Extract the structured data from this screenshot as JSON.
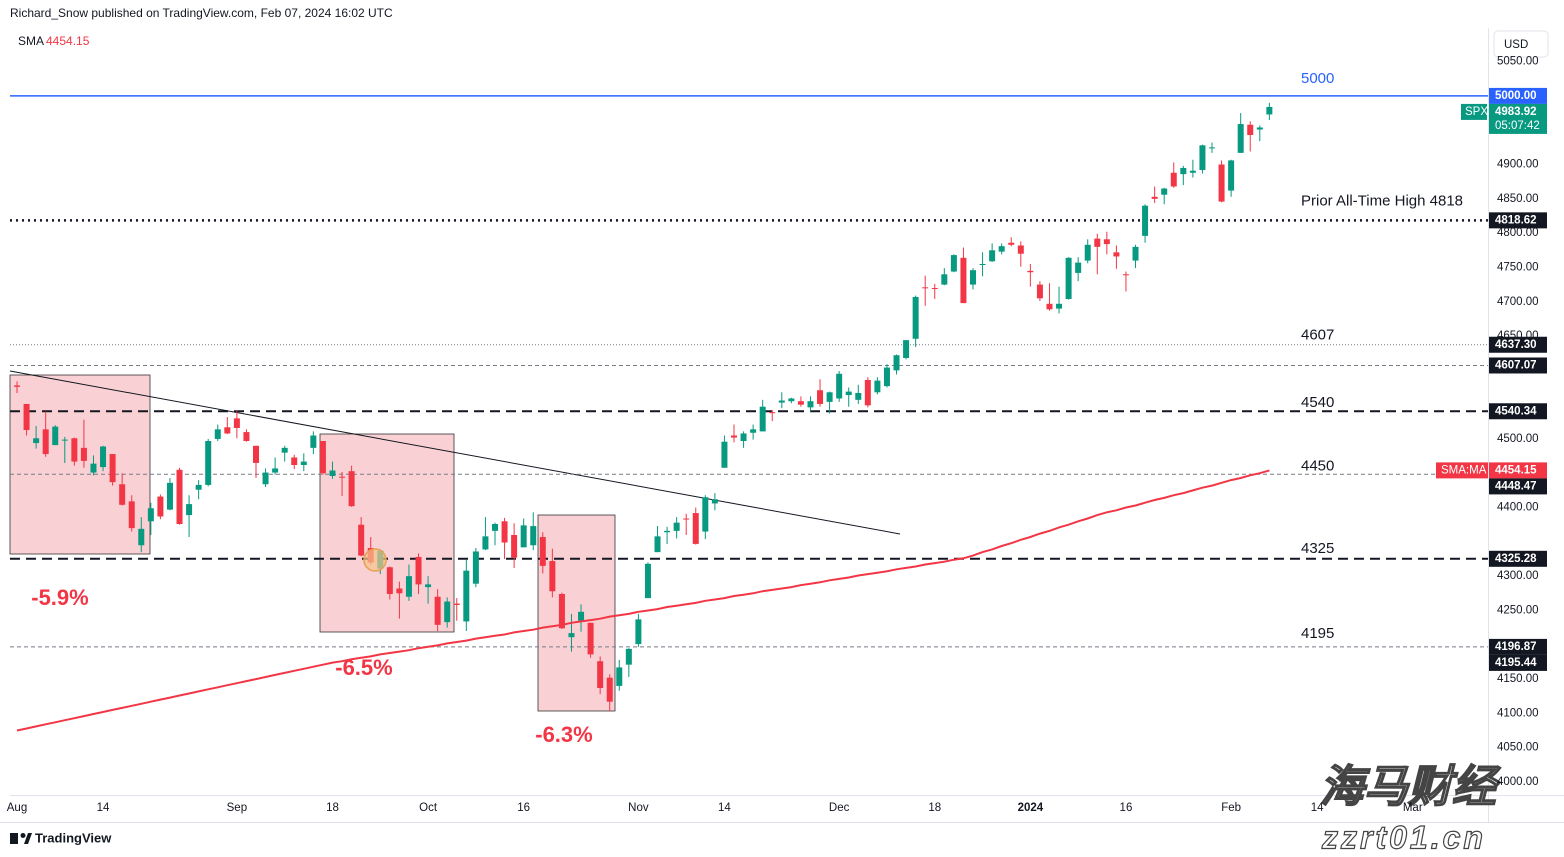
{
  "header": {
    "publisher": "Richard_Snow published on TradingView.com, Feb 07, 2024 16:02 UTC"
  },
  "chart_data": {
    "type": "candlestick",
    "symbol": "SPX",
    "currency": "USD",
    "categories": [
      "Aug",
      null,
      null,
      null,
      null,
      null,
      null,
      null,
      null,
      "14",
      null,
      null,
      null,
      null,
      null,
      null,
      null,
      null,
      null,
      null,
      null,
      null,
      null,
      "Sep",
      null,
      null,
      null,
      null,
      null,
      null,
      null,
      null,
      null,
      "18",
      null,
      null,
      null,
      null,
      null,
      null,
      null,
      null,
      null,
      "Oct",
      null,
      null,
      null,
      null,
      null,
      null,
      null,
      null,
      null,
      "16",
      null,
      null,
      null,
      null,
      null,
      null,
      null,
      null,
      null,
      null,
      null,
      "Nov",
      null,
      null,
      null,
      null,
      null,
      null,
      null,
      null,
      "14",
      null,
      null,
      null,
      null,
      null,
      null,
      null,
      null,
      null,
      null,
      null,
      "Dec",
      null,
      null,
      null,
      null,
      null,
      null,
      null,
      null,
      null,
      "18",
      null,
      null,
      null,
      null,
      null,
      null,
      null,
      null,
      null,
      "2024",
      null,
      null,
      null,
      null,
      null,
      null,
      null,
      null,
      null,
      "16",
      null,
      null,
      null,
      null,
      null,
      null,
      null,
      null,
      null,
      null,
      "Feb",
      null,
      null,
      null,
      null,
      null,
      null,
      null,
      null,
      "14",
      null,
      null,
      null,
      null,
      null,
      null,
      null,
      null,
      null,
      "Mar"
    ],
    "candles": [
      [
        4578,
        4584,
        4567,
        4576
      ],
      [
        4551,
        4551,
        4505,
        4513
      ],
      [
        4494,
        4519,
        4486,
        4501
      ],
      [
        4514,
        4540,
        4474,
        4478
      ],
      [
        4491,
        4520,
        4491,
        4518
      ],
      [
        4498,
        4503,
        4465,
        4499
      ],
      [
        4501,
        4502,
        4461,
        4467
      ],
      [
        4487,
        4528,
        4458,
        4468
      ],
      [
        4451,
        4476,
        4447,
        4464
      ],
      [
        4459,
        4490,
        4453,
        4489
      ],
      [
        4478,
        4478,
        4432,
        4437
      ],
      [
        4434,
        4450,
        4403,
        4404
      ],
      [
        4409,
        4418,
        4365,
        4370
      ],
      [
        4345,
        4386,
        4335,
        4369
      ],
      [
        4380,
        4407,
        4360,
        4399
      ],
      [
        4416,
        4419,
        4383,
        4387
      ],
      [
        4397,
        4443,
        4396,
        4436
      ],
      [
        4455,
        4458,
        4375,
        4376
      ],
      [
        4389,
        4418,
        4357,
        4405
      ],
      [
        4426,
        4440,
        4412,
        4433
      ],
      [
        4433,
        4500,
        4431,
        4497
      ],
      [
        4500,
        4521,
        4497,
        4514
      ],
      [
        4517,
        4532,
        4507,
        4508
      ],
      [
        4530,
        4541,
        4501,
        4516
      ],
      [
        4510,
        4514,
        4496,
        4497
      ],
      [
        4490,
        4490,
        4443,
        4465
      ],
      [
        4434,
        4457,
        4430,
        4451
      ],
      [
        4451,
        4473,
        4448,
        4457
      ],
      [
        4480,
        4490,
        4467,
        4487
      ],
      [
        4473,
        4477,
        4456,
        4462
      ],
      [
        4462,
        4479,
        4453,
        4467
      ],
      [
        4487,
        4511,
        4478,
        4505
      ],
      [
        4497,
        4497,
        4448,
        4450
      ],
      [
        4446,
        4467,
        4442,
        4454
      ],
      [
        4445,
        4452,
        4417,
        4444
      ],
      [
        4453,
        4461,
        4401,
        4402
      ],
      [
        4375,
        4386,
        4329,
        4330
      ],
      [
        4341,
        4357,
        4317,
        4320
      ],
      [
        4311,
        4339,
        4303,
        4337
      ],
      [
        4313,
        4314,
        4266,
        4274
      ],
      [
        4282,
        4292,
        4238,
        4275
      ],
      [
        4270,
        4317,
        4264,
        4300
      ],
      [
        4328,
        4333,
        4274,
        4288
      ],
      [
        4284,
        4300,
        4260,
        4288
      ],
      [
        4270,
        4281,
        4220,
        4229
      ],
      [
        4233,
        4269,
        4225,
        4263
      ],
      [
        4260,
        4268,
        4235,
        4258
      ],
      [
        4234,
        4324,
        4220,
        4308
      ],
      [
        4289,
        4341,
        4284,
        4336
      ],
      [
        4339,
        4386,
        4338,
        4358
      ],
      [
        4366,
        4378,
        4345,
        4376
      ],
      [
        4380,
        4385,
        4325,
        4349
      ],
      [
        4360,
        4377,
        4312,
        4327
      ],
      [
        4342,
        4384,
        4342,
        4374
      ],
      [
        4345,
        4393,
        4338,
        4373
      ],
      [
        4357,
        4364,
        4304,
        4315
      ],
      [
        4322,
        4340,
        4269,
        4278
      ],
      [
        4274,
        4276,
        4223,
        4224
      ],
      [
        4211,
        4245,
        4190,
        4217
      ],
      [
        4235,
        4259,
        4219,
        4248
      ],
      [
        4232,
        4232,
        4181,
        4186
      ],
      [
        4176,
        4183,
        4128,
        4137
      ],
      [
        4152,
        4157,
        4103,
        4117
      ],
      [
        4140,
        4178,
        4133,
        4167
      ],
      [
        4171,
        4195,
        4153,
        4194
      ],
      [
        4201,
        4245,
        4197,
        4237
      ],
      [
        4268,
        4320,
        4268,
        4318
      ],
      [
        4335,
        4373,
        4335,
        4358
      ],
      [
        4364,
        4372,
        4347,
        4366
      ],
      [
        4366,
        4386,
        4355,
        4378
      ],
      [
        4384,
        4391,
        4360,
        4383
      ],
      [
        4392,
        4400,
        4346,
        4347
      ],
      [
        4365,
        4418,
        4354,
        4415
      ],
      [
        4406,
        4421,
        4396,
        4412
      ],
      [
        4458,
        4505,
        4458,
        4496
      ],
      [
        4505,
        4521,
        4495,
        4502
      ],
      [
        4497,
        4511,
        4487,
        4508
      ],
      [
        4509,
        4521,
        4499,
        4514
      ],
      [
        4511,
        4557,
        4511,
        4547
      ],
      [
        4539,
        4542,
        4526,
        4538
      ],
      [
        4553,
        4568,
        4545,
        4556
      ],
      [
        4555,
        4560,
        4552,
        4559
      ],
      [
        4555,
        4562,
        4547,
        4550
      ],
      [
        4546,
        4562,
        4540,
        4555
      ],
      [
        4571,
        4587,
        4547,
        4551
      ],
      [
        4554,
        4569,
        4537,
        4568
      ],
      [
        4559,
        4599,
        4554,
        4595
      ],
      [
        4564,
        4575,
        4547,
        4569
      ],
      [
        4557,
        4579,
        4551,
        4567
      ],
      [
        4586,
        4590,
        4546,
        4549
      ],
      [
        4568,
        4590,
        4565,
        4585
      ],
      [
        4577,
        4609,
        4575,
        4604
      ],
      [
        4600,
        4623,
        4594,
        4622
      ],
      [
        4618,
        4644,
        4616,
        4644
      ],
      [
        4646,
        4709,
        4634,
        4707
      ],
      [
        4721,
        4738,
        4694,
        4720
      ],
      [
        4720,
        4726,
        4704,
        4719
      ],
      [
        4725,
        4749,
        4724,
        4740
      ],
      [
        4744,
        4769,
        4743,
        4768
      ],
      [
        4764,
        4779,
        4698,
        4698
      ],
      [
        4725,
        4749,
        4718,
        4746
      ],
      [
        4754,
        4772,
        4737,
        4755
      ],
      [
        4759,
        4785,
        4758,
        4775
      ],
      [
        4773,
        4785,
        4769,
        4781
      ],
      [
        4786,
        4794,
        4781,
        4783
      ],
      [
        4782,
        4788,
        4751,
        4770
      ],
      [
        4745,
        4755,
        4722,
        4743
      ],
      [
        4725,
        4730,
        4701,
        4705
      ],
      [
        4697,
        4727,
        4687,
        4689
      ],
      [
        4690,
        4722,
        4683,
        4697
      ],
      [
        4704,
        4765,
        4703,
        4764
      ],
      [
        4742,
        4765,
        4730,
        4757
      ],
      [
        4760,
        4791,
        4756,
        4783
      ],
      [
        4792,
        4799,
        4740,
        4780
      ],
      [
        4791,
        4802,
        4769,
        4784
      ],
      [
        4772,
        4782,
        4748,
        4766
      ],
      [
        4740,
        4744,
        4715,
        4739
      ],
      [
        4760,
        4783,
        4749,
        4780
      ],
      [
        4796,
        4842,
        4786,
        4840
      ],
      [
        4853,
        4868,
        4844,
        4850
      ],
      [
        4856,
        4866,
        4842,
        4865
      ],
      [
        4888,
        4903,
        4866,
        4868
      ],
      [
        4886,
        4898,
        4870,
        4895
      ],
      [
        4888,
        4907,
        4881,
        4891
      ],
      [
        4892,
        4929,
        4887,
        4928
      ],
      [
        4925,
        4932,
        4917,
        4925
      ],
      [
        4900,
        4906,
        4845,
        4846
      ],
      [
        4862,
        4907,
        4853,
        4906
      ],
      [
        4917,
        4975,
        4917,
        4959
      ],
      [
        4958,
        4963,
        4919,
        4943
      ],
      [
        4951,
        4957,
        4934,
        4954
      ],
      [
        4973,
        4990,
        4965,
        4983.92
      ],
      null,
      null,
      null,
      null,
      null,
      null,
      null,
      null,
      null,
      null,
      null,
      null,
      null,
      null,
      null
    ],
    "up_color": "#089981",
    "down_color": "#f23645",
    "ylim": [
      3981,
      5099
    ],
    "yticks": [
      {
        "value": 5050,
        "label": "5050.00"
      },
      {
        "value": 4900,
        "label": "4900.00"
      },
      {
        "value": 4850,
        "label": "4850.00"
      },
      {
        "value": 4800,
        "label": "4800.00"
      },
      {
        "value": 4750,
        "label": "4750.00"
      },
      {
        "value": 4700,
        "label": "4700.00"
      },
      {
        "value": 4650,
        "label": "4650.00"
      },
      {
        "value": 4500,
        "label": "4500.00"
      },
      {
        "value": 4400,
        "label": "4400.00"
      },
      {
        "value": 4300,
        "label": "4300.00"
      },
      {
        "value": 4250,
        "label": "4250.00"
      },
      {
        "value": 4150,
        "label": "4150.00"
      },
      {
        "value": 4100,
        "label": "4100.00"
      },
      {
        "value": 4050,
        "label": "4050.00"
      },
      {
        "value": 4000,
        "label": "4000.00"
      }
    ],
    "grid": false,
    "sma": {
      "name": "SMA",
      "axis_label": "SMA:MA",
      "color": "#f23645",
      "values": [
        4075,
        4078,
        4081,
        4084,
        4087,
        4090,
        4093,
        4096,
        4099,
        4102,
        4105,
        4108,
        4111,
        4114,
        4117,
        4120,
        4123,
        4126,
        4129,
        4132,
        4135,
        4138,
        4141,
        4144,
        4147,
        4150,
        4153,
        4156,
        4159,
        4162,
        4165,
        4168,
        4171,
        4174,
        4176,
        4179,
        4181,
        4183,
        4186,
        4188,
        4190,
        4192,
        4195,
        4197,
        4199,
        4202,
        4204,
        4206,
        4209,
        4211,
        4213,
        4215,
        4218,
        4220,
        4222,
        4225,
        4227,
        4229,
        4232,
        4234,
        4236,
        4238,
        4241,
        4243,
        4245,
        4248,
        4250,
        4252,
        4255,
        4257,
        4259,
        4261,
        4264,
        4266,
        4268,
        4271,
        4273,
        4275,
        4278,
        4280,
        4282,
        4284,
        4287,
        4289,
        4291,
        4294,
        4296,
        4298,
        4301,
        4303,
        4305,
        4307,
        4310,
        4312,
        4314,
        4317,
        4319,
        4321,
        4324,
        4326,
        4330,
        4335,
        4339,
        4344,
        4348,
        4353,
        4357,
        4362,
        4366,
        4371,
        4375,
        4380,
        4384,
        4389,
        4393,
        4396,
        4400,
        4403,
        4407,
        4411,
        4414,
        4418,
        4421,
        4425,
        4429,
        4432,
        4436,
        4440,
        4443,
        4447,
        4450,
        4454.15,
        null,
        null,
        null,
        null,
        null,
        null,
        null,
        null,
        null,
        null,
        null,
        null,
        null,
        null,
        null
      ]
    },
    "countdown": "05:07:42",
    "levels": [
      {
        "price": {
          "value": 5000,
          "label": "5000.00"
        },
        "text": "5000",
        "style": "solid",
        "color": "#2962ff"
      },
      {
        "price": 4818.62,
        "text": "Prior All-Time High 4818",
        "style": "dotted-thick",
        "color": "#131722"
      },
      {
        "price": {
          "value": 4637.3,
          "label": "4637.30"
        },
        "style": "dotted",
        "color": "#787b86"
      },
      {
        "price": 4607.07,
        "text": "4607",
        "style": "dashed",
        "color": "#787b86"
      },
      {
        "price": 4540.34,
        "text": "4540",
        "style": "dashed-thick",
        "color": "#131722"
      },
      {
        "price": 4448.47,
        "text": "4450",
        "style": "dashed",
        "color": "#787b86"
      },
      {
        "price": 4325.28,
        "text": "4325",
        "style": "dashed-thick",
        "color": "#131722"
      },
      {
        "price": 4196.87,
        "text": "4195",
        "style": "dashed",
        "color": "#787b86"
      },
      {
        "price": 4195.44,
        "style": "none",
        "color": "#131722"
      }
    ],
    "annotations": [
      "-5.9%",
      "-6.5%",
      "-6.3%"
    ]
  },
  "footer": {
    "logo": "TradingView"
  },
  "watermark": {
    "name": "海马财经",
    "url": "zzrt01.cn"
  }
}
